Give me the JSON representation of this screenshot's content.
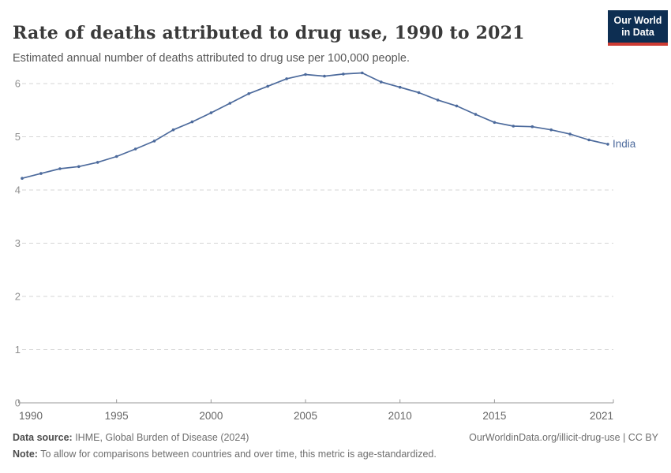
{
  "header": {
    "title": "Rate of deaths attributed to drug use, 1990 to 2021",
    "subtitle": "Estimated annual number of deaths attributed to drug use per 100,000 people.",
    "logo": {
      "line1": "Our World",
      "line2": "in Data",
      "bg_color": "#0d2e52",
      "accent_color": "#cd3b33"
    }
  },
  "chart_data": {
    "type": "line",
    "title": "Rate of deaths attributed to drug use, 1990 to 2021",
    "subtitle": "Estimated annual number of deaths attributed to drug use per 100,000 people.",
    "xlabel": "",
    "ylabel": "",
    "xlim": [
      1990,
      2021
    ],
    "ylim": [
      0,
      6
    ],
    "grid": true,
    "legend_position": "end-of-line-label",
    "xticks": [
      1990,
      1995,
      2000,
      2005,
      2010,
      2015,
      2021
    ],
    "yticks": [
      0,
      1,
      2,
      3,
      4,
      5,
      6
    ],
    "x": [
      1990,
      1991,
      1992,
      1993,
      1994,
      1995,
      1996,
      1997,
      1998,
      1999,
      2000,
      2001,
      2002,
      2003,
      2004,
      2005,
      2006,
      2007,
      2008,
      2009,
      2010,
      2011,
      2012,
      2013,
      2014,
      2015,
      2016,
      2017,
      2018,
      2019,
      2020,
      2021
    ],
    "series": [
      {
        "name": "India",
        "color": "#4C6A9C",
        "values": [
          4.22,
          4.31,
          4.4,
          4.44,
          4.52,
          4.63,
          4.77,
          4.92,
          5.13,
          5.28,
          5.45,
          5.63,
          5.81,
          5.95,
          6.09,
          6.17,
          6.14,
          6.18,
          6.2,
          6.03,
          5.93,
          5.83,
          5.69,
          5.58,
          5.42,
          5.27,
          5.2,
          5.19,
          5.13,
          5.05,
          4.94,
          4.86
        ]
      }
    ],
    "style": {
      "grid_color": "#d5d5d5",
      "axis_color": "#999999"
    }
  },
  "footer": {
    "source_label": "Data source:",
    "source_text": " IHME, Global Burden of Disease (2024)",
    "attribution": "OurWorldinData.org/illicit-drug-use | CC BY",
    "note_label": "Note:",
    "note_text": " To allow for comparisons between countries and over time, this metric is age-standardized."
  }
}
